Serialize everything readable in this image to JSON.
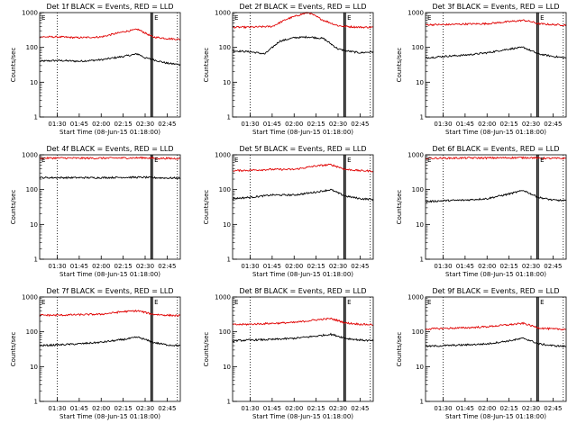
{
  "figure": {
    "ylabel": "Counts/sec",
    "xlabel": "Start Time (08-Jun-15 01:18:00)",
    "series_colors": {
      "events": "#000000",
      "lld": "#e00000"
    },
    "x_range": [
      "01:18",
      "02:54"
    ],
    "ylim": [
      1,
      1000
    ],
    "y_ticks": [
      "1",
      "10",
      "100",
      "1000"
    ],
    "x_ticks": [
      "01:30",
      "01:45",
      "02:00",
      "02:15",
      "02:30",
      "02:45"
    ],
    "marker_label": "E",
    "corner_label": "E",
    "markers": {
      "dotted_lines": [
        "01:30",
        "02:52"
      ],
      "solid_lines": [
        "02:34",
        "02:35"
      ]
    }
  },
  "chart_data": [
    {
      "type": "line",
      "title": "Det 1f BLACK = Events, RED = LLD",
      "series": [
        {
          "name": "Events",
          "color": "#000000",
          "times": [
            "01:18",
            "01:30",
            "01:45",
            "02:00",
            "02:15",
            "02:25",
            "02:30",
            "02:35",
            "02:45",
            "02:54"
          ],
          "values": [
            40,
            42,
            40,
            44,
            55,
            65,
            50,
            45,
            35,
            32
          ]
        },
        {
          "name": "LLD",
          "color": "#e00000",
          "times": [
            "01:18",
            "01:30",
            "01:45",
            "02:00",
            "02:15",
            "02:25",
            "02:30",
            "02:35",
            "02:45",
            "02:54"
          ],
          "values": [
            200,
            200,
            190,
            200,
            280,
            330,
            260,
            200,
            180,
            170
          ]
        }
      ]
    },
    {
      "type": "line",
      "title": "Det 2f BLACK = Events, RED = LLD",
      "series": [
        {
          "name": "Events",
          "color": "#000000",
          "times": [
            "01:18",
            "01:30",
            "01:40",
            "01:50",
            "02:00",
            "02:10",
            "02:20",
            "02:30",
            "02:35",
            "02:45",
            "02:54"
          ],
          "values": [
            80,
            75,
            65,
            150,
            190,
            200,
            180,
            90,
            80,
            70,
            75
          ]
        },
        {
          "name": "LLD",
          "color": "#e00000",
          "times": [
            "01:18",
            "01:30",
            "01:45",
            "01:55",
            "02:05",
            "02:10",
            "02:20",
            "02:30",
            "02:35",
            "02:45",
            "02:54"
          ],
          "values": [
            380,
            380,
            400,
            650,
            900,
            1000,
            600,
            420,
            400,
            380,
            380
          ]
        }
      ]
    },
    {
      "type": "line",
      "title": "Det 3f BLACK = Events, RED = LLD",
      "series": [
        {
          "name": "Events",
          "color": "#000000",
          "times": [
            "01:18",
            "01:30",
            "01:45",
            "02:00",
            "02:15",
            "02:25",
            "02:30",
            "02:35",
            "02:45",
            "02:54"
          ],
          "values": [
            50,
            55,
            60,
            70,
            90,
            100,
            80,
            65,
            55,
            50
          ]
        },
        {
          "name": "LLD",
          "color": "#e00000",
          "times": [
            "01:18",
            "01:30",
            "01:45",
            "02:00",
            "02:15",
            "02:25",
            "02:30",
            "02:35",
            "02:45",
            "02:54"
          ],
          "values": [
            450,
            450,
            470,
            480,
            550,
            600,
            550,
            480,
            450,
            440
          ]
        }
      ]
    },
    {
      "type": "line",
      "title": "Det 4f BLACK = Events, RED = LLD",
      "series": [
        {
          "name": "Events",
          "color": "#000000",
          "times": [
            "01:18",
            "01:30",
            "01:45",
            "02:00",
            "02:15",
            "02:30",
            "02:35",
            "02:45",
            "02:54"
          ],
          "values": [
            220,
            220,
            220,
            220,
            225,
            225,
            220,
            215,
            215
          ]
        },
        {
          "name": "LLD",
          "color": "#e00000",
          "times": [
            "01:18",
            "01:30",
            "01:45",
            "02:00",
            "02:15",
            "02:30",
            "02:35",
            "02:45",
            "02:54"
          ],
          "values": [
            800,
            810,
            800,
            800,
            810,
            820,
            800,
            790,
            780
          ]
        }
      ]
    },
    {
      "type": "line",
      "title": "Det 5f BLACK = Events, RED = LLD",
      "series": [
        {
          "name": "Events",
          "color": "#000000",
          "times": [
            "01:18",
            "01:30",
            "01:45",
            "02:00",
            "02:15",
            "02:25",
            "02:30",
            "02:35",
            "02:45",
            "02:54"
          ],
          "values": [
            55,
            60,
            70,
            70,
            85,
            100,
            80,
            65,
            55,
            52
          ]
        },
        {
          "name": "LLD",
          "color": "#e00000",
          "times": [
            "01:18",
            "01:30",
            "01:45",
            "02:00",
            "02:15",
            "02:25",
            "02:30",
            "02:35",
            "02:45",
            "02:54"
          ],
          "values": [
            350,
            360,
            380,
            380,
            480,
            520,
            450,
            380,
            350,
            340
          ]
        }
      ]
    },
    {
      "type": "line",
      "title": "Det 6f BLACK = Events, RED = LLD",
      "series": [
        {
          "name": "Events",
          "color": "#000000",
          "times": [
            "01:18",
            "01:30",
            "01:45",
            "02:00",
            "02:15",
            "02:25",
            "02:30",
            "02:35",
            "02:45",
            "02:54"
          ],
          "values": [
            45,
            48,
            50,
            55,
            75,
            95,
            75,
            60,
            50,
            48
          ]
        },
        {
          "name": "LLD",
          "color": "#e00000",
          "times": [
            "01:18",
            "01:30",
            "01:45",
            "02:00",
            "02:15",
            "02:30",
            "02:35",
            "02:45",
            "02:54"
          ],
          "values": [
            800,
            800,
            810,
            810,
            820,
            830,
            800,
            790,
            790
          ]
        }
      ]
    },
    {
      "type": "line",
      "title": "Det 7f BLACK = Events, RED = LLD",
      "series": [
        {
          "name": "Events",
          "color": "#000000",
          "times": [
            "01:18",
            "01:30",
            "01:45",
            "02:00",
            "02:15",
            "02:25",
            "02:30",
            "02:35",
            "02:45",
            "02:54"
          ],
          "values": [
            40,
            42,
            45,
            50,
            60,
            70,
            60,
            50,
            42,
            40
          ]
        },
        {
          "name": "LLD",
          "color": "#e00000",
          "times": [
            "01:18",
            "01:30",
            "01:45",
            "02:00",
            "02:15",
            "02:25",
            "02:30",
            "02:35",
            "02:45",
            "02:54"
          ],
          "values": [
            300,
            300,
            310,
            320,
            380,
            400,
            360,
            320,
            300,
            290
          ]
        }
      ]
    },
    {
      "type": "line",
      "title": "Det 8f BLACK = Events, RED = LLD",
      "series": [
        {
          "name": "Events",
          "color": "#000000",
          "times": [
            "01:18",
            "01:30",
            "01:45",
            "02:00",
            "02:15",
            "02:25",
            "02:30",
            "02:35",
            "02:45",
            "02:54"
          ],
          "values": [
            55,
            58,
            60,
            65,
            75,
            85,
            75,
            65,
            58,
            55
          ]
        },
        {
          "name": "LLD",
          "color": "#e00000",
          "times": [
            "01:18",
            "01:30",
            "01:45",
            "02:00",
            "02:15",
            "02:25",
            "02:30",
            "02:35",
            "02:45",
            "02:54"
          ],
          "values": [
            160,
            165,
            175,
            185,
            220,
            240,
            210,
            180,
            165,
            160
          ]
        }
      ]
    },
    {
      "type": "line",
      "title": "Det 9f BLACK = Events, RED = LLD",
      "series": [
        {
          "name": "Events",
          "color": "#000000",
          "times": [
            "01:18",
            "01:30",
            "01:45",
            "02:00",
            "02:15",
            "02:25",
            "02:30",
            "02:35",
            "02:45",
            "02:54"
          ],
          "values": [
            38,
            40,
            42,
            45,
            55,
            65,
            55,
            45,
            40,
            38
          ]
        },
        {
          "name": "LLD",
          "color": "#e00000",
          "times": [
            "01:18",
            "01:30",
            "01:45",
            "02:00",
            "02:15",
            "02:25",
            "02:30",
            "02:35",
            "02:45",
            "02:54"
          ],
          "values": [
            120,
            125,
            130,
            140,
            160,
            175,
            150,
            130,
            120,
            118
          ]
        }
      ]
    }
  ]
}
